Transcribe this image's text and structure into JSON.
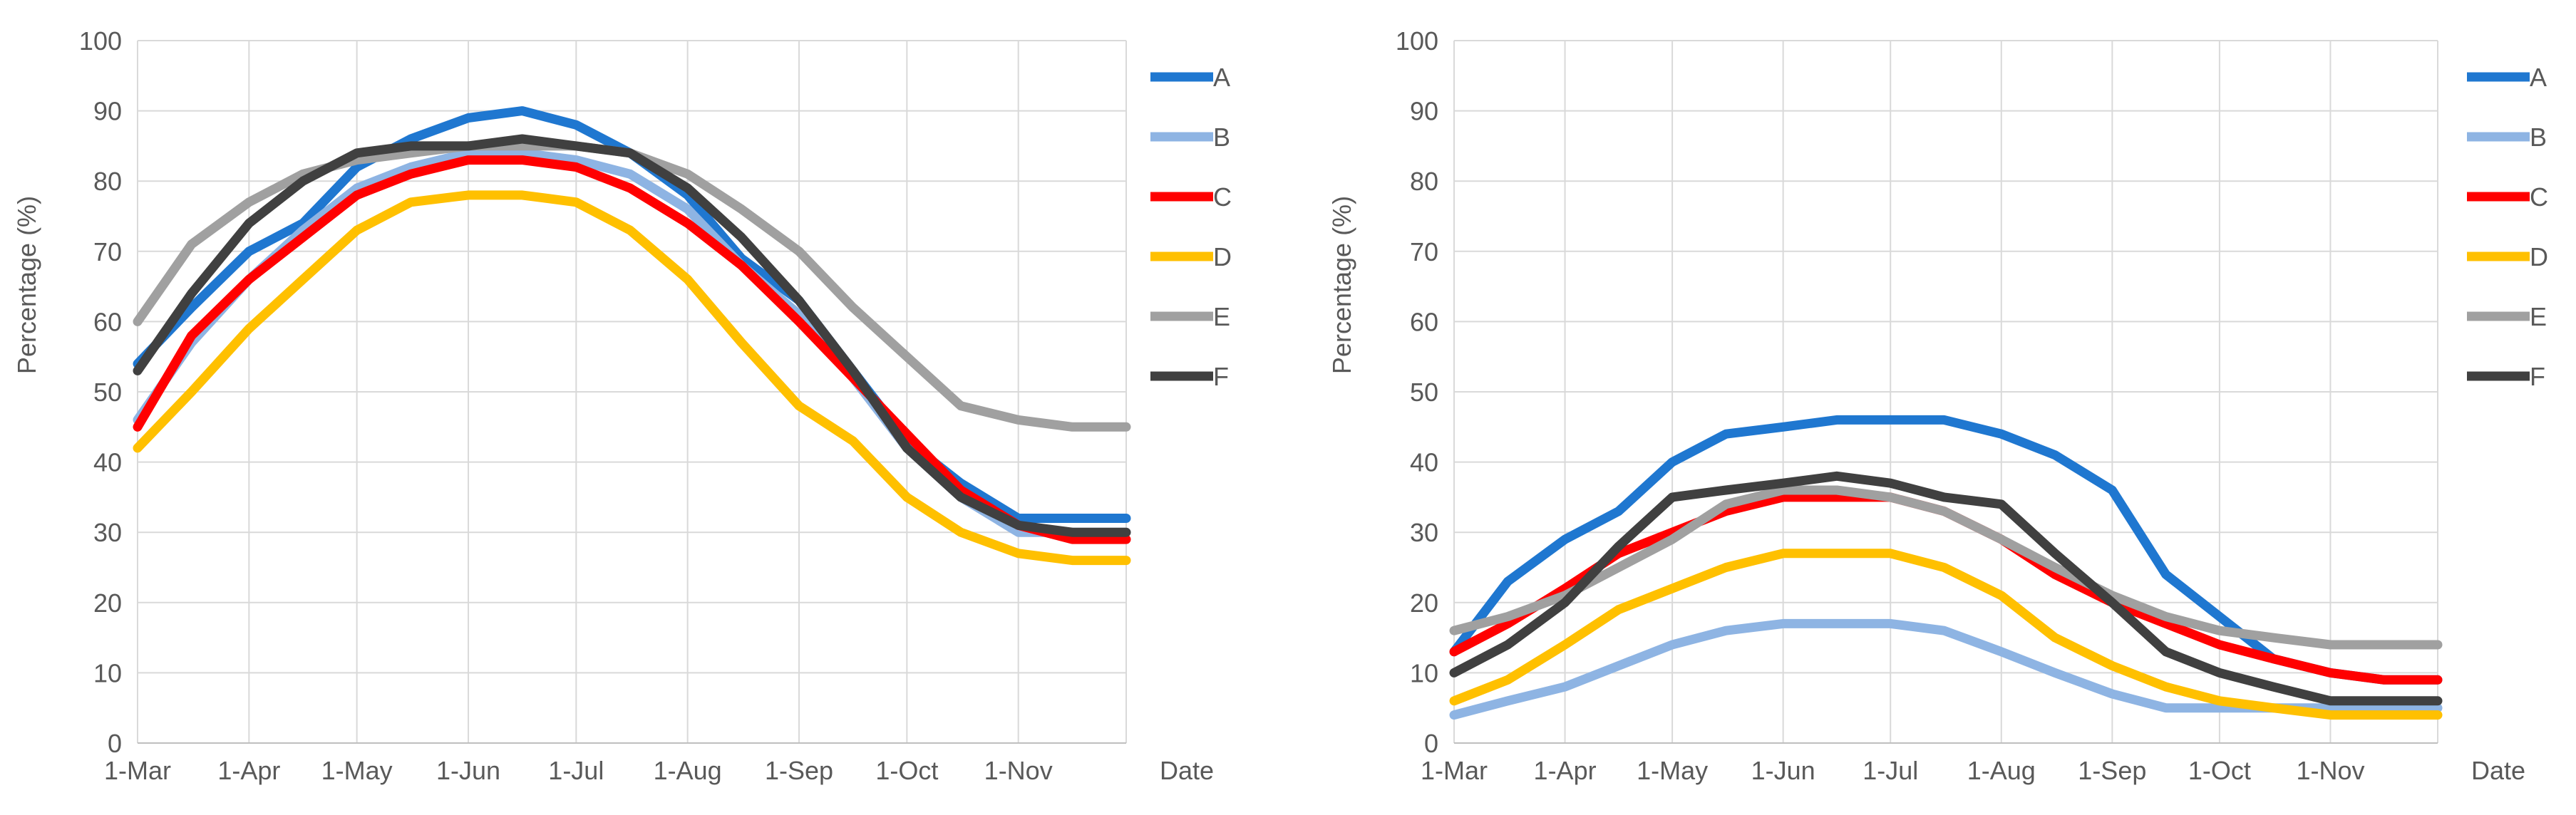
{
  "chart_data": [
    {
      "type": "line",
      "title": "",
      "xlabel": "Date",
      "ylabel": "Percentage (%)",
      "ylim": [
        0,
        100
      ],
      "yticks": [
        "0",
        "10",
        "20",
        "30",
        "40",
        "50",
        "60",
        "70",
        "80",
        "90",
        "100"
      ],
      "xticks": [
        "1-Mar",
        "1-Apr",
        "1-May",
        "1-Jun",
        "1-Jul",
        "1-Aug",
        "1-Sep",
        "1-Oct",
        "1-Nov"
      ],
      "x_days": [
        0,
        15,
        31,
        46,
        61,
        76,
        92,
        107,
        122,
        137,
        153,
        168,
        184,
        199,
        214,
        229,
        245,
        260,
        275
      ],
      "series": [
        {
          "name": "A",
          "color": "#1F77D0",
          "values": [
            54,
            62,
            70,
            74,
            82,
            86,
            89,
            90,
            88,
            84,
            78,
            69,
            63,
            53,
            43,
            37,
            32,
            32,
            32
          ]
        },
        {
          "name": "B",
          "color": "#8EB4E3",
          "values": [
            46,
            57,
            66,
            73,
            79,
            82,
            84,
            84,
            83,
            81,
            76,
            68,
            61,
            52,
            42,
            35,
            30,
            30,
            30
          ]
        },
        {
          "name": "C",
          "color": "#FF0000",
          "values": [
            45,
            58,
            66,
            72,
            78,
            81,
            83,
            83,
            82,
            79,
            74,
            68,
            60,
            52,
            44,
            36,
            31,
            29,
            29
          ]
        },
        {
          "name": "D",
          "color": "#FFC000",
          "values": [
            42,
            50,
            59,
            66,
            73,
            77,
            78,
            78,
            77,
            73,
            66,
            57,
            48,
            43,
            35,
            30,
            27,
            26,
            26
          ]
        },
        {
          "name": "E",
          "color": "#A0A0A0",
          "values": [
            60,
            71,
            77,
            81,
            83,
            84,
            85,
            85,
            85,
            84,
            81,
            76,
            70,
            62,
            55,
            48,
            46,
            45,
            45
          ]
        },
        {
          "name": "F",
          "color": "#404040",
          "values": [
            53,
            64,
            74,
            80,
            84,
            85,
            85,
            86,
            85,
            84,
            79,
            72,
            63,
            53,
            42,
            35,
            31,
            30,
            30
          ]
        }
      ]
    },
    {
      "type": "line",
      "title": "",
      "xlabel": "Date",
      "ylabel": "Percentage (%)",
      "ylim": [
        0,
        100
      ],
      "yticks": [
        "0",
        "10",
        "20",
        "30",
        "40",
        "50",
        "60",
        "70",
        "80",
        "90",
        "100"
      ],
      "xticks": [
        "1-Mar",
        "1-Apr",
        "1-May",
        "1-Jun",
        "1-Jul",
        "1-Aug",
        "1-Sep",
        "1-Oct",
        "1-Nov"
      ],
      "x_days": [
        0,
        15,
        31,
        46,
        61,
        76,
        92,
        107,
        122,
        137,
        153,
        168,
        184,
        199,
        214,
        229,
        245,
        260,
        275
      ],
      "series": [
        {
          "name": "A",
          "color": "#1F77D0",
          "values": [
            13,
            23,
            29,
            33,
            40,
            44,
            45,
            46,
            46,
            46,
            44,
            41,
            36,
            24,
            18,
            12,
            10,
            9,
            9
          ]
        },
        {
          "name": "B",
          "color": "#8EB4E3",
          "values": [
            4,
            6,
            8,
            11,
            14,
            16,
            17,
            17,
            17,
            16,
            13,
            10,
            7,
            5,
            5,
            5,
            5,
            5,
            5
          ]
        },
        {
          "name": "C",
          "color": "#FF0000",
          "values": [
            13,
            17,
            22,
            27,
            30,
            33,
            35,
            35,
            35,
            33,
            29,
            24,
            20,
            17,
            14,
            12,
            10,
            9,
            9
          ]
        },
        {
          "name": "D",
          "color": "#FFC000",
          "values": [
            6,
            9,
            14,
            19,
            22,
            25,
            27,
            27,
            27,
            25,
            21,
            15,
            11,
            8,
            6,
            5,
            4,
            4,
            4
          ]
        },
        {
          "name": "E",
          "color": "#A0A0A0",
          "values": [
            16,
            18,
            21,
            25,
            29,
            34,
            36,
            36,
            35,
            33,
            29,
            25,
            21,
            18,
            16,
            15,
            14,
            14,
            14
          ]
        },
        {
          "name": "F",
          "color": "#404040",
          "values": [
            10,
            14,
            20,
            28,
            35,
            36,
            37,
            38,
            37,
            35,
            34,
            27,
            20,
            13,
            10,
            8,
            6,
            6,
            6
          ]
        }
      ]
    }
  ]
}
